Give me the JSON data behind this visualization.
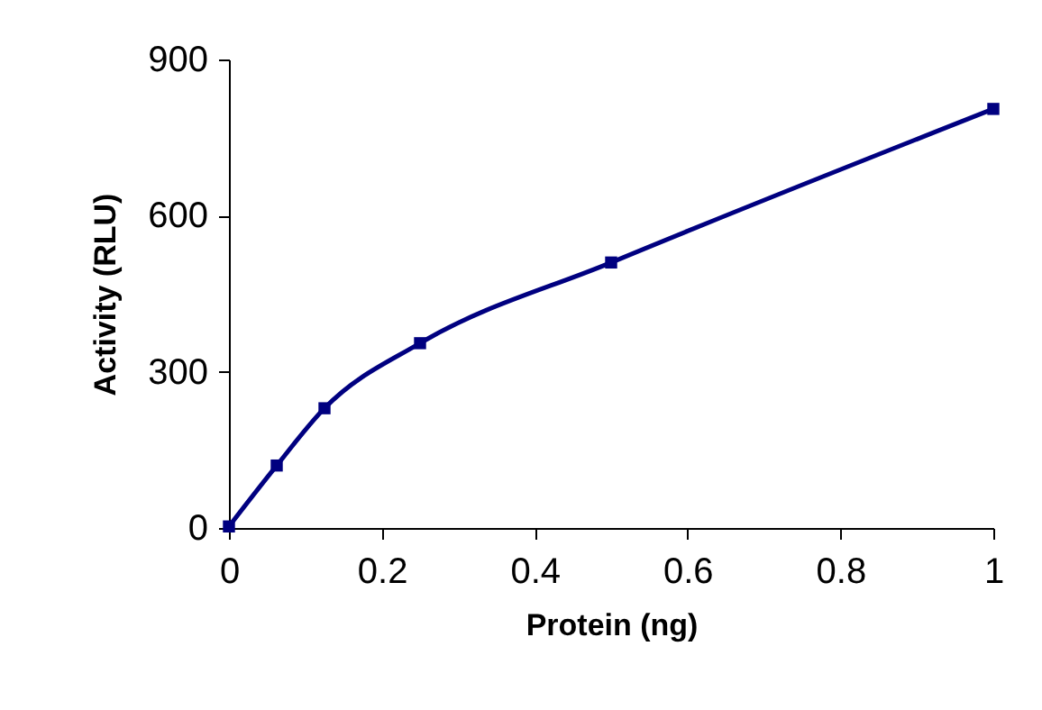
{
  "chart_data": {
    "type": "line",
    "xlabel": "Protein (ng)",
    "ylabel": "Activity (RLU)",
    "x": [
      0,
      0.0625,
      0.125,
      0.25,
      0.5,
      1
    ],
    "series": [
      {
        "color": "#000080",
        "values": [
          3,
          120,
          230,
          355,
          510,
          805
        ]
      }
    ],
    "xlim": [
      0,
      1
    ],
    "xticks": [
      0,
      0.2,
      0.4,
      0.6,
      0.8,
      1
    ],
    "ylim": [
      0,
      900
    ],
    "yticks": [
      0,
      300,
      600,
      900
    ],
    "grid": false,
    "legend": false,
    "marker": "square",
    "line_style": "solid"
  }
}
